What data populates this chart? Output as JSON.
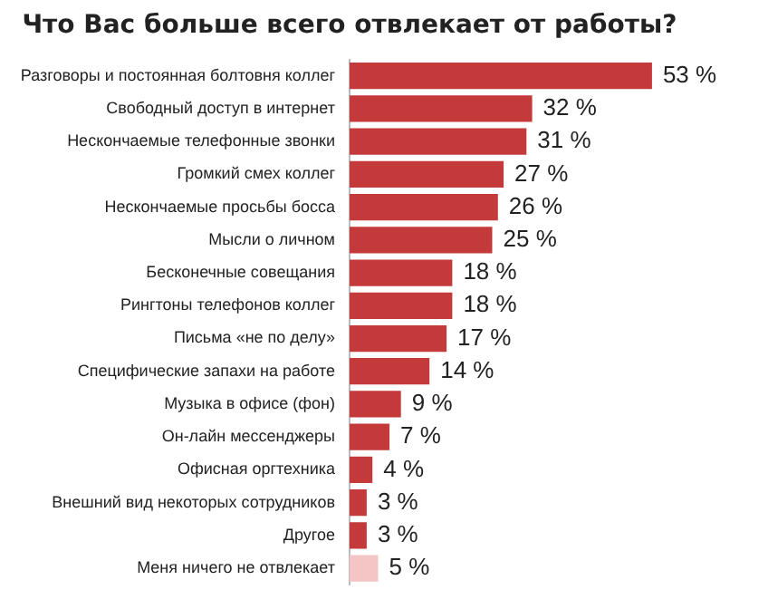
{
  "chart_data": {
    "type": "bar",
    "orientation": "horizontal",
    "title": "Что Вас больше всего отвлекает от работы?",
    "categories": [
      "Разговоры и постоянная болтовня коллег",
      "Свободный доступ в интернет",
      "Нескончаемые телефонные звонки",
      "Громкий смех коллег",
      "Нескончаемые просьбы босса",
      "Мысли о личном",
      "Бесконечные совещания",
      "Рингтоны телефонов коллег",
      "Письма «не по делу»",
      "Специфические запахи на работе",
      "Музыка в офисе (фон)",
      "Он-лайн мессенджеры",
      "Офисная оргтехника",
      "Внешний вид некоторых сотрудников",
      "Другое",
      "Меня ничего не отвлекает"
    ],
    "values": [
      53,
      32,
      31,
      27,
      26,
      25,
      18,
      18,
      17,
      14,
      9,
      7,
      4,
      3,
      3,
      5
    ],
    "colors": [
      "#c43a3a",
      "#c43a3a",
      "#c43a3a",
      "#c43a3a",
      "#c43a3a",
      "#c43a3a",
      "#c43a3a",
      "#c43a3a",
      "#c43a3a",
      "#c43a3a",
      "#c43a3a",
      "#c43a3a",
      "#c43a3a",
      "#c43a3a",
      "#c43a3a",
      "#f5c4c4"
    ],
    "value_labels": [
      "53 %",
      "32 %",
      "31 %",
      "27 %",
      "26 %",
      "25 %",
      "18 %",
      "18 %",
      "17 %",
      "14 %",
      "9 %",
      "7 %",
      "4 %",
      "3 %",
      "3 %",
      "5 %"
    ],
    "grid": false,
    "legend": false
  }
}
